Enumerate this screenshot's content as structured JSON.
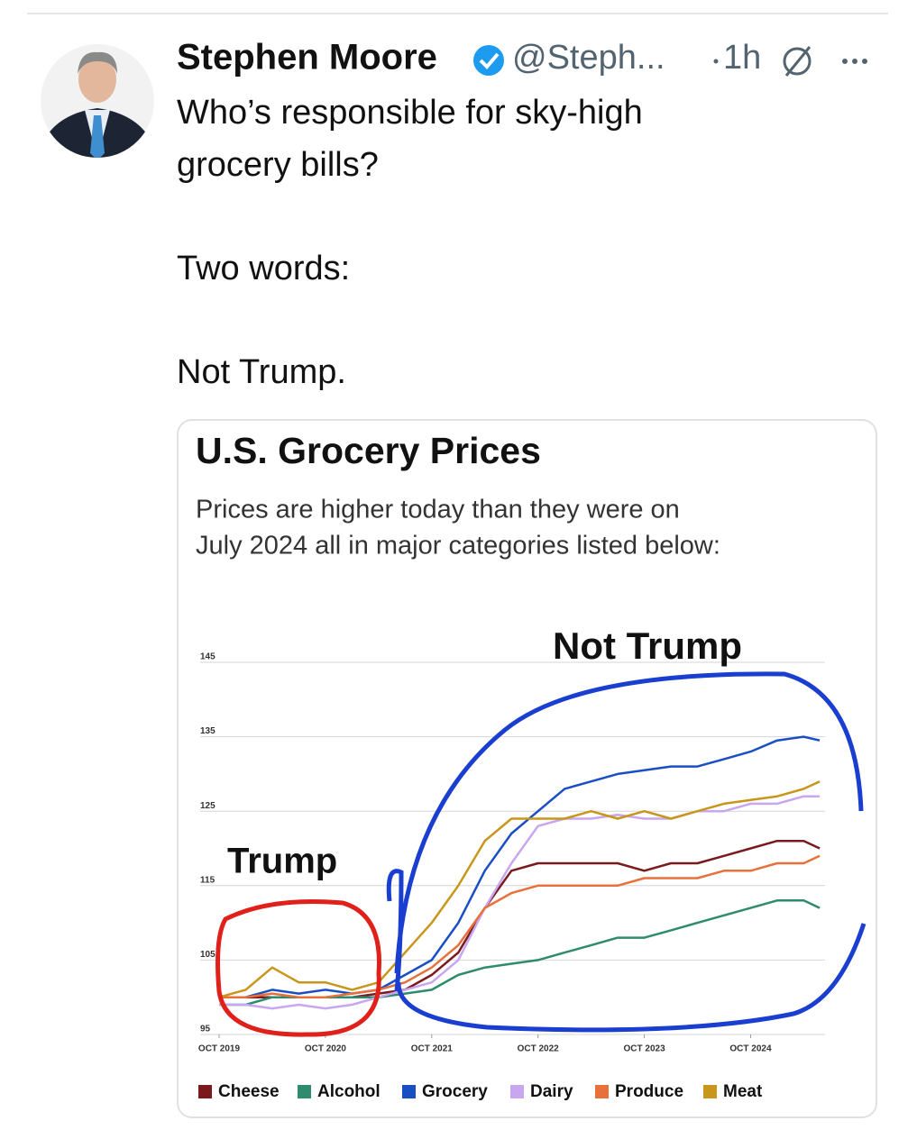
{
  "tweet": {
    "name": "Stephen Moore",
    "handle": "@Steph...",
    "time": "1h",
    "text": [
      "Who’s responsible for sky-high",
      "grocery bills?",
      "Two words:",
      "Not Trump."
    ]
  },
  "chart_data": {
    "type": "line",
    "title": "U.S. Grocery Prices",
    "subtitle": [
      "Prices are higher today than they were on",
      "July 2024 all in major categories listed below:"
    ],
    "annotations": [
      "Trump",
      "Not Trump"
    ],
    "x": [
      2019.75,
      2020.0,
      2020.25,
      2020.5,
      2020.75,
      2021.0,
      2021.25,
      2021.5,
      2021.75,
      2022.0,
      2022.25,
      2022.5,
      2022.75,
      2023.0,
      2023.25,
      2023.5,
      2023.75,
      2024.0,
      2024.25,
      2024.5,
      2024.75,
      2025.0,
      2025.25,
      2025.4
    ],
    "xlim": [
      2019.75,
      2025.45
    ],
    "xticks": [
      {
        "value": 2019.75,
        "label": "OCT 2019"
      },
      {
        "value": 2020.75,
        "label": "OCT 2020"
      },
      {
        "value": 2021.75,
        "label": "OCT 2021"
      },
      {
        "value": 2022.75,
        "label": "OCT 2022"
      },
      {
        "value": 2023.75,
        "label": "OCT 2023"
      },
      {
        "value": 2024.75,
        "label": "OCT 2024"
      }
    ],
    "ylim": [
      95,
      145
    ],
    "yticks": [
      145,
      135,
      125,
      115,
      105,
      95
    ],
    "grid": true,
    "series": [
      {
        "name": "Cheese",
        "color": "#7a1a1f",
        "values": [
          100,
          100,
          100,
          100,
          100,
          100,
          100.5,
          101,
          103,
          106,
          112,
          117,
          118,
          118,
          118,
          118,
          117,
          118,
          118,
          119,
          120,
          121,
          121,
          120
        ]
      },
      {
        "name": "Alcohol",
        "color": "#2e8b6e",
        "values": [
          99,
          99,
          100,
          100,
          100,
          100,
          100,
          100.5,
          101,
          103,
          104,
          104.5,
          105,
          106,
          107,
          108,
          108,
          109,
          110,
          111,
          112,
          113,
          113,
          112
        ]
      },
      {
        "name": "Grocery",
        "color": "#1a4fc4",
        "values": [
          100,
          100,
          101,
          100.5,
          101,
          100.5,
          101,
          103,
          105,
          110,
          117,
          122,
          125,
          128,
          129,
          130,
          130.5,
          131,
          131,
          132,
          133,
          134.5,
          135,
          134.5
        ]
      },
      {
        "name": "Dairy",
        "color": "#c8a6f0",
        "values": [
          99,
          99,
          98.5,
          99,
          98.5,
          99,
          100,
          101,
          102,
          105,
          112,
          118,
          123,
          124,
          124,
          124.5,
          124,
          124,
          125,
          125,
          126,
          126,
          127,
          127
        ]
      },
      {
        "name": "Produce",
        "color": "#e8703a",
        "values": [
          100,
          100,
          100.5,
          100,
          100,
          100.5,
          101,
          102,
          104,
          107,
          112,
          114,
          115,
          115,
          115,
          115,
          116,
          116,
          116,
          117,
          117,
          118,
          118,
          119
        ]
      },
      {
        "name": "Meat",
        "color": "#c8961a",
        "values": [
          100,
          101,
          104,
          102,
          102,
          101,
          102,
          106,
          110,
          115,
          121,
          124,
          124,
          124,
          125,
          124,
          125,
          124,
          125,
          126,
          126.5,
          127,
          128,
          129
        ]
      }
    ]
  }
}
